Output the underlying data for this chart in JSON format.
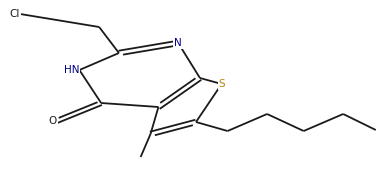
{
  "bg_color": "#ffffff",
  "bond_color": "#1a1a1a",
  "n_color": "#00008b",
  "s_color": "#b8860b",
  "o_color": "#1a1a1a",
  "cl_color": "#1a1a1a",
  "line_width": 1.3,
  "font_size": 7.5,
  "figsize": [
    3.88,
    1.84
  ],
  "dpi": 100,
  "xlim": [
    0.0,
    10.0
  ],
  "ylim": [
    0.0,
    4.8
  ]
}
